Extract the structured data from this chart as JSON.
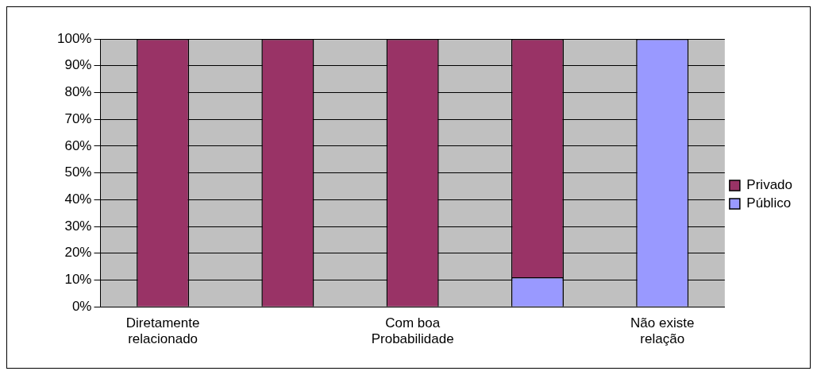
{
  "chart_data": {
    "type": "bar",
    "stacked": true,
    "categories": [
      "Diretamente relacionado",
      null,
      "Com boa Probabilidade",
      null,
      "Não existe relação"
    ],
    "series": [
      {
        "name": "Público",
        "color": "#9999ff",
        "values": [
          0,
          0,
          0,
          11,
          100
        ]
      },
      {
        "name": "Privado",
        "color": "#993366",
        "values": [
          100,
          100,
          100,
          89,
          0
        ]
      }
    ],
    "ylim": [
      0,
      100
    ],
    "yticks": [
      {
        "value": 0,
        "label": "0%"
      },
      {
        "value": 10,
        "label": "10%"
      },
      {
        "value": 20,
        "label": "20%"
      },
      {
        "value": 30,
        "label": "30%"
      },
      {
        "value": 40,
        "label": "40%"
      },
      {
        "value": 50,
        "label": "50%"
      },
      {
        "value": 60,
        "label": "60%"
      },
      {
        "value": 70,
        "label": "70%"
      },
      {
        "value": 80,
        "label": "80%"
      },
      {
        "value": 90,
        "label": "90%"
      },
      {
        "value": 100,
        "label": "100%"
      }
    ],
    "grid": "y",
    "legend": "right"
  }
}
